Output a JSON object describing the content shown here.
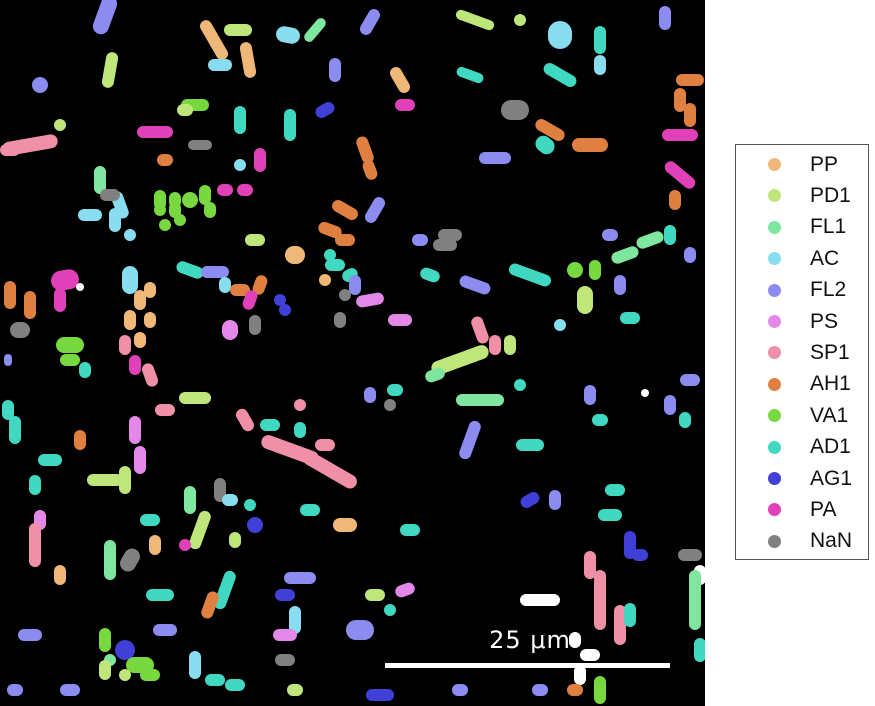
{
  "scale_bar": {
    "label": "25 μm"
  },
  "legend": [
    {
      "label": "PP",
      "color": "#F0B878"
    },
    {
      "label": "PD1",
      "color": "#BFE67A"
    },
    {
      "label": "FL1",
      "color": "#7FE6A0"
    },
    {
      "label": "AC",
      "color": "#88DDF0"
    },
    {
      "label": "FL2",
      "color": "#8C8CF0"
    },
    {
      "label": "PS",
      "color": "#E388E8"
    },
    {
      "label": "SP1",
      "color": "#F08FA8"
    },
    {
      "label": "AH1",
      "color": "#E08040"
    },
    {
      "label": "VA1",
      "color": "#78D840"
    },
    {
      "label": "AD1",
      "color": "#40D8C0"
    },
    {
      "label": "AG1",
      "color": "#4040D8"
    },
    {
      "label": "PA",
      "color": "#E040B8"
    },
    {
      "label": "NaN",
      "color": "#808080"
    }
  ]
}
